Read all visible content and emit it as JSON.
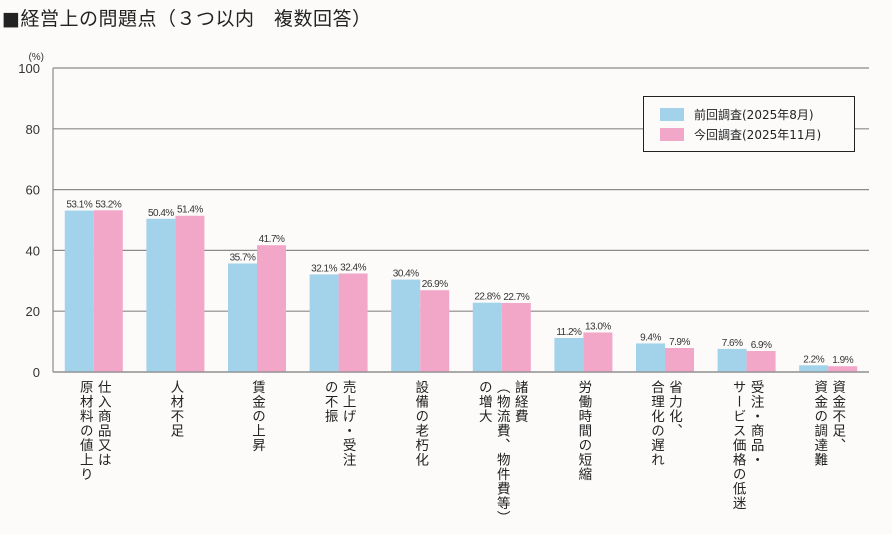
{
  "title": "■経営上の問題点（３つ以内　複数回答）",
  "chart_data": {
    "type": "bar",
    "title": "経営上の問題点（３つ以内　複数回答）",
    "xlabel": "",
    "ylabel": "(%)",
    "ylim": [
      0,
      100
    ],
    "yticks": [
      0,
      20,
      40,
      60,
      80,
      100
    ],
    "grid": true,
    "legend_position": "top-right",
    "categories": [
      "仕入商品又は原材料の値上り",
      "人材不足",
      "賃金の上昇",
      "売上げ・受注の不振",
      "設備の老朽化",
      "諸経費（物流費、物件費等）の増大",
      "労働時間の短縮",
      "省力化、合理化の遅れ",
      "受注・商品・サービス価格の低迷",
      "資金不足、資金の調達難"
    ],
    "category_lines": [
      [
        "仕入商品又は",
        "原材料の値上り"
      ],
      [
        "人材不足"
      ],
      [
        "賃金の上昇"
      ],
      [
        "売上げ・受注",
        "の不振"
      ],
      [
        "設備の老朽化"
      ],
      [
        "諸経費",
        "（物流費、物件費等）",
        "の増大"
      ],
      [
        "労働時間の短縮"
      ],
      [
        "省力化、",
        "合理化の遅れ"
      ],
      [
        "受注・商品・",
        "サービス価格の低迷"
      ],
      [
        "資金不足、",
        "資金の調達難"
      ]
    ],
    "series": [
      {
        "name": "前回調査(2025年8月)",
        "color": "#a3d3ea",
        "values": [
          53.1,
          50.4,
          35.7,
          32.1,
          30.4,
          22.8,
          11.2,
          9.4,
          7.6,
          2.2
        ],
        "labels": [
          "53.1%",
          "50.4%",
          "35.7%",
          "32.1%",
          "30.4%",
          "22.8%",
          "11.2%",
          "9.4%",
          "7.6%",
          "2.2%"
        ]
      },
      {
        "name": "今回調査(2025年11月)",
        "color": "#f2a7c8",
        "values": [
          53.2,
          51.4,
          41.7,
          32.4,
          26.9,
          22.7,
          13.0,
          7.9,
          6.9,
          1.9
        ],
        "labels": [
          "53.2%",
          "51.4%",
          "41.7%",
          "32.4%",
          "26.9%",
          "22.7%",
          "13.0%",
          "7.9%",
          "6.9%",
          "1.9%"
        ]
      }
    ]
  }
}
